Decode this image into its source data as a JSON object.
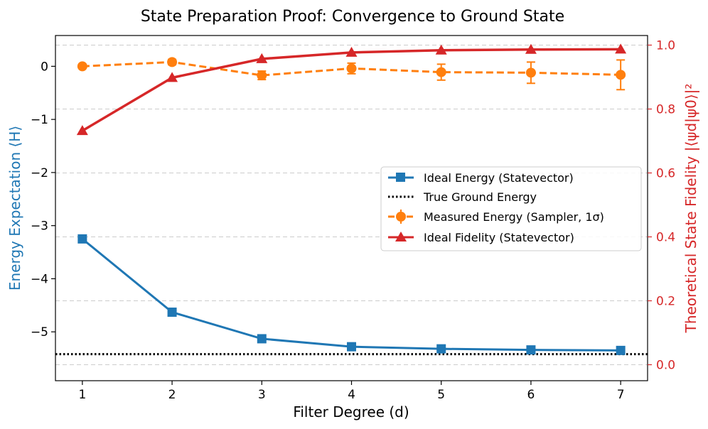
{
  "chart_data": {
    "type": "line",
    "title": "State Preparation Proof: Convergence to Ground State",
    "xlabel": "Filter Degree (d)",
    "ylabel_left": "Energy Expectation ⟨H⟩",
    "ylabel_right": "Theoretical State Fidelity |⟨ψd|ψ0⟩|²",
    "x": [
      1,
      2,
      3,
      4,
      5,
      6,
      7
    ],
    "x_ticks": [
      "1",
      "2",
      "3",
      "4",
      "5",
      "6",
      "7"
    ],
    "y_left_ticks": [
      "0",
      "−1",
      "−2",
      "−3",
      "−4",
      "−5"
    ],
    "y_right_ticks": [
      "0.0",
      "0.2",
      "0.4",
      "0.6",
      "0.8",
      "1.0"
    ],
    "xlim": [
      0.7,
      7.3
    ],
    "ylim_left": [
      -5.92,
      0.58
    ],
    "ylim_right": [
      -0.05,
      1.03
    ],
    "grid": "horizontal dashed",
    "legend_position": "center-right",
    "series": [
      {
        "name": "Ideal Energy (Statevector)",
        "axis": "left",
        "color": "#1f77b4",
        "marker": "square",
        "values": [
          -3.25,
          -4.63,
          -5.13,
          -5.28,
          -5.32,
          -5.34,
          -5.35
        ]
      },
      {
        "name": "True Ground Energy",
        "axis": "left",
        "color": "#000000",
        "style": "dotted",
        "constant": -5.42
      },
      {
        "name": "Measured Energy (Sampler, 1σ)",
        "axis": "left",
        "color": "#ff7f0e",
        "marker": "circle",
        "style": "dashed",
        "values": [
          0.0,
          0.08,
          -0.17,
          -0.04,
          -0.11,
          -0.12,
          -0.16
        ],
        "errors": [
          0.03,
          0.05,
          0.08,
          0.1,
          0.15,
          0.2,
          0.28
        ]
      },
      {
        "name": "Ideal Fidelity (Statevector)",
        "axis": "right",
        "color": "#d62728",
        "marker": "triangle",
        "values": [
          0.732,
          0.898,
          0.957,
          0.977,
          0.984,
          0.986,
          0.987
        ]
      }
    ]
  }
}
